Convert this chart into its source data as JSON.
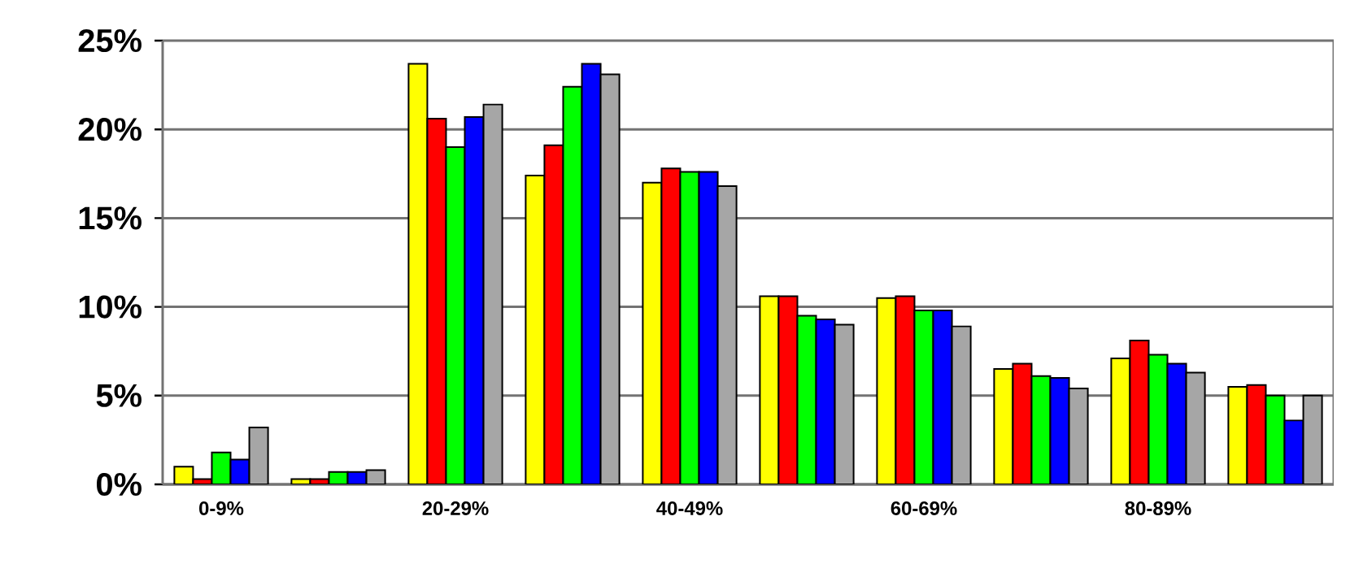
{
  "chart_data": {
    "type": "bar",
    "categories": [
      "0-9%",
      null,
      "20-29%",
      null,
      "40-49%",
      null,
      "60-69%",
      null,
      "80-89%",
      null
    ],
    "series": [
      {
        "color": "#ffff00",
        "values": [
          1.0,
          0.3,
          23.7,
          17.4,
          17.0,
          10.6,
          10.5,
          6.5,
          7.1,
          5.5
        ]
      },
      {
        "color": "#ff0000",
        "values": [
          0.3,
          0.3,
          20.6,
          19.1,
          17.8,
          10.6,
          10.6,
          6.8,
          8.1,
          5.6
        ]
      },
      {
        "color": "#00ff00",
        "values": [
          1.8,
          0.7,
          19.0,
          22.4,
          17.6,
          9.5,
          9.8,
          6.1,
          7.3,
          5.0
        ]
      },
      {
        "color": "#0000ff",
        "values": [
          1.4,
          0.7,
          20.7,
          23.7,
          17.6,
          9.3,
          9.8,
          6.0,
          6.8,
          3.6
        ]
      },
      {
        "color": "#a6a6a6",
        "values": [
          3.2,
          0.8,
          21.4,
          23.1,
          16.8,
          9.0,
          8.9,
          5.4,
          6.3,
          5.0
        ]
      }
    ],
    "ylim": [
      0,
      25
    ],
    "yticks": [
      {
        "value": 0,
        "label": "0%"
      },
      {
        "value": 5,
        "label": "5%"
      },
      {
        "value": 10,
        "label": "10%"
      },
      {
        "value": 15,
        "label": "15%"
      },
      {
        "value": 20,
        "label": "20%"
      },
      {
        "value": 25,
        "label": "25%"
      }
    ],
    "grid": "y"
  }
}
